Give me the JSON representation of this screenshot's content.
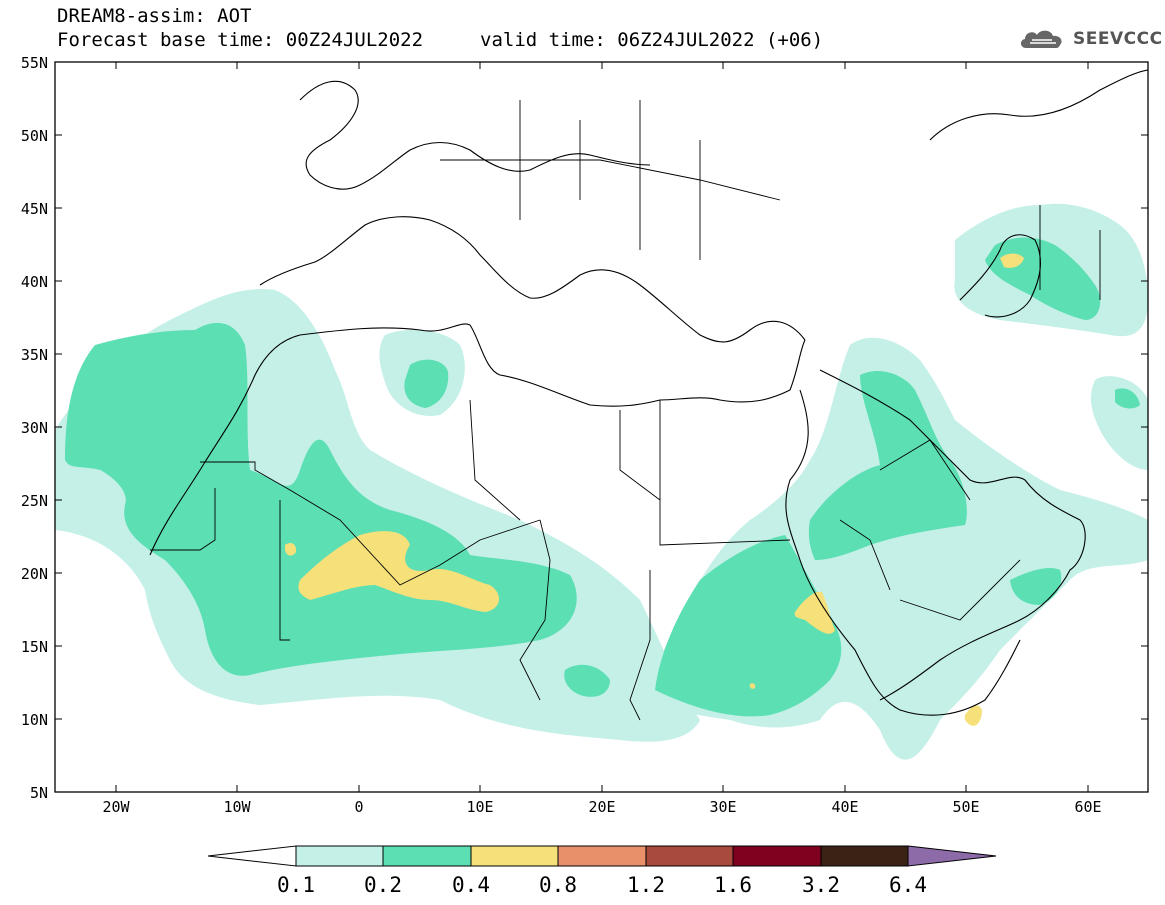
{
  "header": {
    "title": "DREAM8-assim: AOT",
    "base_time": "Forecast base time: 00Z24JUL2022",
    "valid_time": "valid time: 06Z24JUL2022 (+06)"
  },
  "logo": {
    "text": "SEEVCCC",
    "icon": "cloud-logo-icon"
  },
  "map": {
    "lat_labels": [
      "55N",
      "50N",
      "45N",
      "40N",
      "35N",
      "30N",
      "25N",
      "20N",
      "15N",
      "10N",
      "5N"
    ],
    "lon_labels": [
      "20W",
      "10W",
      "0",
      "10E",
      "20E",
      "30E",
      "40E",
      "50E",
      "60E"
    ],
    "lat_range": [
      5,
      55
    ],
    "lon_range": [
      -25,
      65
    ]
  },
  "colorbar": {
    "labels": [
      "0.1",
      "0.2",
      "0.4",
      "0.8",
      "1.2",
      "1.6",
      "3.2",
      "6.4"
    ],
    "colors": [
      "#ffffff",
      "#c5f0e8",
      "#5ddfb4",
      "#f5e07a",
      "#e8906a",
      "#a84a3c",
      "#800020",
      "#3a2214",
      "#8d6aa8"
    ]
  }
}
